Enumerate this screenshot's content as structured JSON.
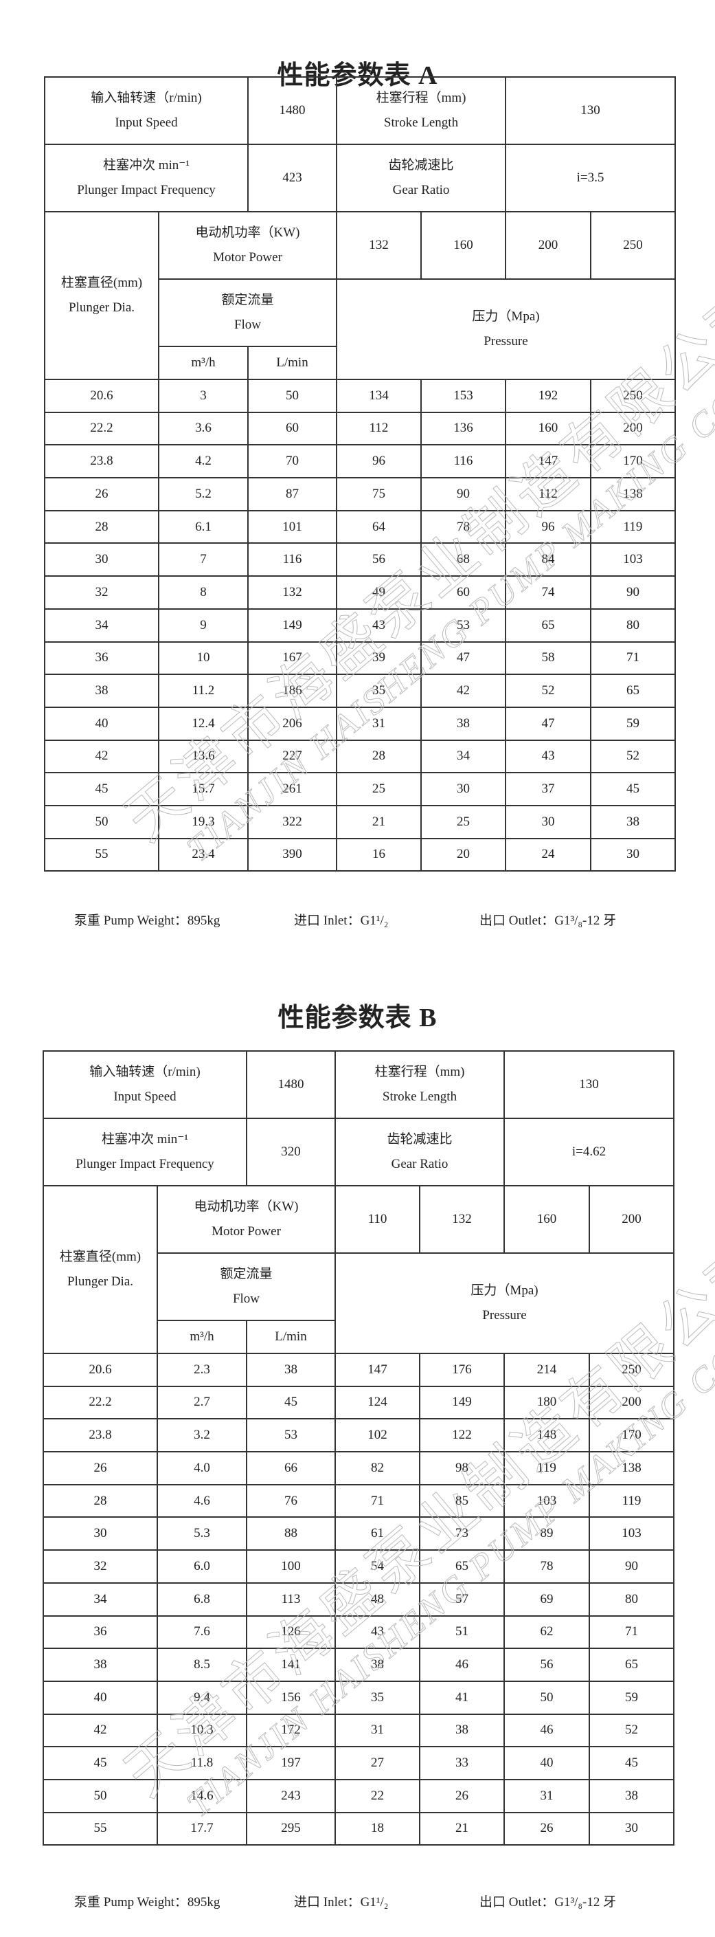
{
  "watermark": {
    "cn": "天津市海盛泵业制造有限公司",
    "en": "TIANJIN HAISHENG PUMP MAKING CO.,LTD."
  },
  "tables": [
    {
      "title": "性能参数表 A",
      "input_speed": {
        "cn": "输入轴转速（r/min)",
        "en": "Input Speed",
        "value": "1480"
      },
      "stroke_length": {
        "cn": "柱塞行程（mm)",
        "en": "Stroke Length",
        "value": "130"
      },
      "impact_frequency": {
        "cn": "柱塞冲次 min⁻¹",
        "en": "Plunger Impact Frequency",
        "value": "423"
      },
      "gear_ratio": {
        "cn": "齿轮减速比",
        "en": "Gear Ratio",
        "value": "i=3.5"
      },
      "plunger_dia": {
        "cn": "柱塞直径(mm)",
        "en": "Plunger Dia."
      },
      "motor_power": {
        "cn": "电动机功率（KW)",
        "en": "Motor Power",
        "values": [
          "132",
          "160",
          "200",
          "250"
        ]
      },
      "flow": {
        "cn": "额定流量",
        "en": "Flow",
        "unit_m3h": "m³/h",
        "unit_lmin": "L/min"
      },
      "pressure": {
        "cn": "压力（Mpa)",
        "en": "Pressure"
      },
      "rows": [
        [
          "20.6",
          "3",
          "50",
          "134",
          "153",
          "192",
          "250"
        ],
        [
          "22.2",
          "3.6",
          "60",
          "112",
          "136",
          "160",
          "200"
        ],
        [
          "23.8",
          "4.2",
          "70",
          "96",
          "116",
          "147",
          "170"
        ],
        [
          "26",
          "5.2",
          "87",
          "75",
          "90",
          "112",
          "138"
        ],
        [
          "28",
          "6.1",
          "101",
          "64",
          "78",
          "96",
          "119"
        ],
        [
          "30",
          "7",
          "116",
          "56",
          "68",
          "84",
          "103"
        ],
        [
          "32",
          "8",
          "132",
          "49",
          "60",
          "74",
          "90"
        ],
        [
          "34",
          "9",
          "149",
          "43",
          "53",
          "65",
          "80"
        ],
        [
          "36",
          "10",
          "167",
          "39",
          "47",
          "58",
          "71"
        ],
        [
          "38",
          "11.2",
          "186",
          "35",
          "42",
          "52",
          "65"
        ],
        [
          "40",
          "12.4",
          "206",
          "31",
          "38",
          "47",
          "59"
        ],
        [
          "42",
          "13.6",
          "227",
          "28",
          "34",
          "43",
          "52"
        ],
        [
          "45",
          "15.7",
          "261",
          "25",
          "30",
          "37",
          "45"
        ],
        [
          "50",
          "19.3",
          "322",
          "21",
          "25",
          "30",
          "38"
        ],
        [
          "55",
          "23.4",
          "390",
          "16",
          "20",
          "24",
          "30"
        ]
      ],
      "footer": {
        "weight": "泵重 Pump Weight：895kg",
        "inlet": "进口 Inlet：G1¹/₂",
        "outlet": "出口 Outlet：G1³/₈-12 牙"
      }
    },
    {
      "title": "性能参数表 B",
      "input_speed": {
        "cn": "输入轴转速（r/min)",
        "en": "Input Speed",
        "value": "1480"
      },
      "stroke_length": {
        "cn": "柱塞行程（mm)",
        "en": "Stroke Length",
        "value": "130"
      },
      "impact_frequency": {
        "cn": "柱塞冲次 min⁻¹",
        "en": "Plunger Impact Frequency",
        "value": "320"
      },
      "gear_ratio": {
        "cn": "齿轮减速比",
        "en": "Gear Ratio",
        "value": "i=4.62"
      },
      "plunger_dia": {
        "cn": "柱塞直径(mm)",
        "en": "Plunger Dia."
      },
      "motor_power": {
        "cn": "电动机功率（KW)",
        "en": "Motor Power",
        "values": [
          "110",
          "132",
          "160",
          "200"
        ]
      },
      "flow": {
        "cn": "额定流量",
        "en": "Flow",
        "unit_m3h": "m³/h",
        "unit_lmin": "L/min"
      },
      "pressure": {
        "cn": "压力（Mpa)",
        "en": "Pressure"
      },
      "rows": [
        [
          "20.6",
          "2.3",
          "38",
          "147",
          "176",
          "214",
          "250"
        ],
        [
          "22.2",
          "2.7",
          "45",
          "124",
          "149",
          "180",
          "200"
        ],
        [
          "23.8",
          "3.2",
          "53",
          "102",
          "122",
          "148",
          "170"
        ],
        [
          "26",
          "4.0",
          "66",
          "82",
          "98",
          "119",
          "138"
        ],
        [
          "28",
          "4.6",
          "76",
          "71",
          "85",
          "103",
          "119"
        ],
        [
          "30",
          "5.3",
          "88",
          "61",
          "73",
          "89",
          "103"
        ],
        [
          "32",
          "6.0",
          "100",
          "54",
          "65",
          "78",
          "90"
        ],
        [
          "34",
          "6.8",
          "113",
          "48",
          "57",
          "69",
          "80"
        ],
        [
          "36",
          "7.6",
          "126",
          "43",
          "51",
          "62",
          "71"
        ],
        [
          "38",
          "8.5",
          "141",
          "38",
          "46",
          "56",
          "65"
        ],
        [
          "40",
          "9.4",
          "156",
          "35",
          "41",
          "50",
          "59"
        ],
        [
          "42",
          "10.3",
          "172",
          "31",
          "38",
          "46",
          "52"
        ],
        [
          "45",
          "11.8",
          "197",
          "27",
          "33",
          "40",
          "45"
        ],
        [
          "50",
          "14.6",
          "243",
          "22",
          "26",
          "31",
          "38"
        ],
        [
          "55",
          "17.7",
          "295",
          "18",
          "21",
          "26",
          "30"
        ]
      ],
      "footer": {
        "weight": "泵重 Pump Weight：895kg",
        "inlet": "进口 Inlet：G1¹/₂",
        "outlet": "出口 Outlet：G1³/₈-12 牙"
      }
    }
  ]
}
